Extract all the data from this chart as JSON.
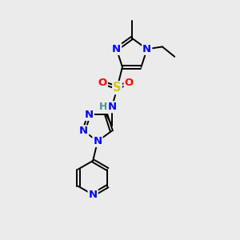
{
  "background_color": "#ebebeb",
  "bond_color": "#000000",
  "atom_colors": {
    "N": "#0000ff",
    "O": "#ff0000",
    "S": "#cccc00",
    "H": "#4a9090",
    "C": "#000000"
  },
  "figsize": [
    3.0,
    3.0
  ],
  "dpi": 100,
  "lw": 1.4,
  "fs": 9.5
}
